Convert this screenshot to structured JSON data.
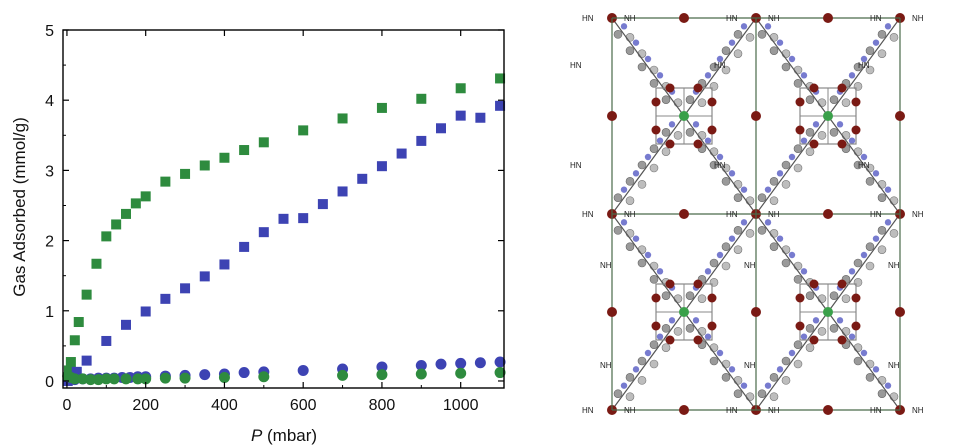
{
  "chart_data": {
    "type": "scatter",
    "title": "",
    "xlabel_italic": "P",
    "xlabel_unit": " (mbar)",
    "ylabel": "Gas Adsorbed (mmol/g)",
    "xlim": [
      -10,
      1110
    ],
    "ylim": [
      -0.1,
      5
    ],
    "xticks": [
      0,
      200,
      400,
      600,
      800,
      1000
    ],
    "yticks": [
      0,
      1,
      2,
      3,
      4,
      5
    ],
    "grid": false,
    "legend": "none",
    "series": [
      {
        "marker": "square",
        "color": "#2e8b3e",
        "points": [
          [
            2,
            0.05
          ],
          [
            5,
            0.15
          ],
          [
            10,
            0.27
          ],
          [
            20,
            0.58
          ],
          [
            30,
            0.84
          ],
          [
            50,
            1.23
          ],
          [
            75,
            1.67
          ],
          [
            100,
            2.06
          ],
          [
            125,
            2.23
          ],
          [
            150,
            2.38
          ],
          [
            175,
            2.53
          ],
          [
            200,
            2.63
          ],
          [
            250,
            2.84
          ],
          [
            300,
            2.95
          ],
          [
            350,
            3.07
          ],
          [
            400,
            3.18
          ],
          [
            450,
            3.29
          ],
          [
            500,
            3.4
          ],
          [
            600,
            3.57
          ],
          [
            700,
            3.74
          ],
          [
            800,
            3.89
          ],
          [
            900,
            4.02
          ],
          [
            1000,
            4.17
          ],
          [
            1100,
            4.31
          ]
        ]
      },
      {
        "marker": "square",
        "color": "#3d43b3",
        "points": [
          [
            2,
            0.0
          ],
          [
            10,
            0.04
          ],
          [
            25,
            0.13
          ],
          [
            50,
            0.29
          ],
          [
            100,
            0.57
          ],
          [
            150,
            0.8
          ],
          [
            200,
            0.99
          ],
          [
            250,
            1.17
          ],
          [
            300,
            1.32
          ],
          [
            350,
            1.49
          ],
          [
            400,
            1.66
          ],
          [
            450,
            1.91
          ],
          [
            500,
            2.12
          ],
          [
            550,
            2.31
          ],
          [
            600,
            2.32
          ],
          [
            650,
            2.52
          ],
          [
            700,
            2.7
          ],
          [
            750,
            2.88
          ],
          [
            800,
            3.06
          ],
          [
            850,
            3.24
          ],
          [
            900,
            3.42
          ],
          [
            950,
            3.6
          ],
          [
            1000,
            3.78
          ],
          [
            1050,
            3.75
          ],
          [
            1100,
            3.92
          ]
        ]
      },
      {
        "marker": "circle",
        "color": "#3d43b3",
        "points": [
          [
            5,
            0.02
          ],
          [
            20,
            0.02
          ],
          [
            40,
            0.03
          ],
          [
            60,
            0.03
          ],
          [
            80,
            0.04
          ],
          [
            100,
            0.04
          ],
          [
            120,
            0.04
          ],
          [
            140,
            0.05
          ],
          [
            160,
            0.05
          ],
          [
            180,
            0.06
          ],
          [
            200,
            0.06
          ],
          [
            250,
            0.07
          ],
          [
            300,
            0.08
          ],
          [
            350,
            0.09
          ],
          [
            400,
            0.1
          ],
          [
            450,
            0.12
          ],
          [
            500,
            0.13
          ],
          [
            600,
            0.15
          ],
          [
            700,
            0.17
          ],
          [
            800,
            0.2
          ],
          [
            900,
            0.22
          ],
          [
            950,
            0.24
          ],
          [
            1000,
            0.25
          ],
          [
            1050,
            0.26
          ],
          [
            1100,
            0.27
          ]
        ]
      },
      {
        "marker": "circle",
        "color": "#2e8b3e",
        "points": [
          [
            2,
            0.07
          ],
          [
            10,
            0.05
          ],
          [
            20,
            0.03
          ],
          [
            40,
            0.03
          ],
          [
            60,
            0.02
          ],
          [
            80,
            0.02
          ],
          [
            100,
            0.03
          ],
          [
            120,
            0.03
          ],
          [
            150,
            0.03
          ],
          [
            180,
            0.03
          ],
          [
            200,
            0.03
          ],
          [
            250,
            0.04
          ],
          [
            300,
            0.04
          ],
          [
            400,
            0.05
          ],
          [
            500,
            0.06
          ],
          [
            700,
            0.08
          ],
          [
            800,
            0.09
          ],
          [
            900,
            0.1
          ],
          [
            1000,
            0.11
          ],
          [
            1100,
            0.12
          ]
        ]
      }
    ]
  },
  "structure": {
    "amine_label_right": "NH",
    "amine_label_left": "HN",
    "colors": {
      "metal": "#7a1a14",
      "nitrogen": "#4a4fbf",
      "carbon": "#9a9a9a",
      "center": "#3aa04a",
      "bond": "#555555"
    }
  }
}
